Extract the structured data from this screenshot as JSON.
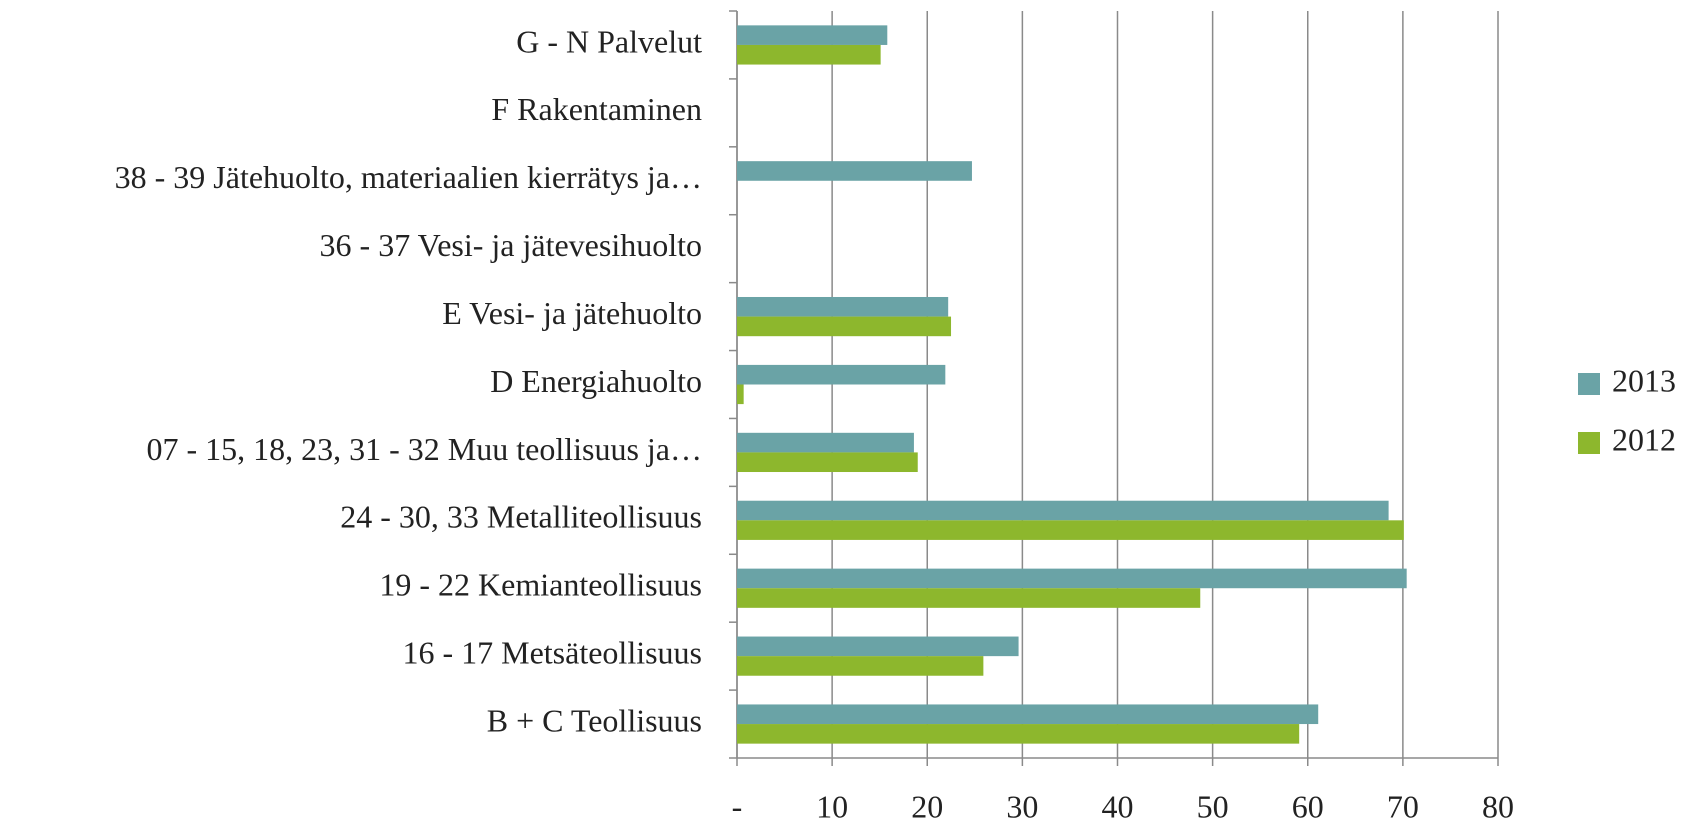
{
  "chart_data": {
    "type": "bar",
    "orientation": "horizontal",
    "categories": [
      "G - N Palvelut",
      "F Rakentaminen",
      "38 - 39 Jätehuolto, materiaalien kierrätys ja…",
      "36 - 37 Vesi- ja jätevesihuolto",
      "E Vesi- ja jätehuolto",
      "D Energiahuolto",
      "07 - 15, 18, 23, 31 - 32 Muu teollisuus ja…",
      "24 - 30, 33 Metalliteollisuus",
      "19 - 22 Kemianteollisuus",
      "16 - 17 Metsäteollisuus",
      "B + C Teollisuus"
    ],
    "series": [
      {
        "name": "2013",
        "color": "#6aa3a6",
        "values": [
          15.8,
          null,
          24.7,
          null,
          22.2,
          21.9,
          18.6,
          68.5,
          70.4,
          29.6,
          61.1
        ]
      },
      {
        "name": "2012",
        "color": "#8db72d",
        "values": [
          15.1,
          null,
          null,
          null,
          22.5,
          0.7,
          19.0,
          70.1,
          48.7,
          25.9,
          59.1
        ]
      }
    ],
    "xlim": [
      0,
      80
    ],
    "xticks": [
      {
        "value": 0,
        "label": "-"
      },
      10,
      20,
      30,
      40,
      50,
      60,
      70,
      80
    ],
    "grid": true,
    "legend": "right"
  }
}
